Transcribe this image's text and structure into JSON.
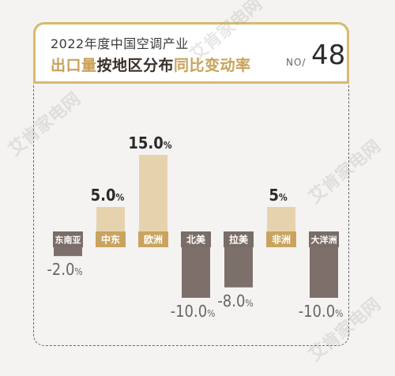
{
  "header": {
    "line1": "2022年度中国空调产业",
    "line2_gold_a": "出口量",
    "line2_dark": "按地区分布",
    "line2_gold_b": "同比变动率",
    "no_label": "NO/",
    "no_value": "48"
  },
  "watermark": "艾肯家电网",
  "colors": {
    "positive": "#e6d3ad",
    "negative": "#7d706b",
    "label_bg_positive": "#c9a460",
    "label_bg_negative": "#7a6d68",
    "accent": "#d9b96b"
  },
  "chart_data": {
    "type": "bar",
    "title": "2022年度中国空调产业出口量按地区分布同比变动率",
    "categories": [
      "东南亚",
      "中东",
      "欧洲",
      "北美",
      "拉美",
      "非洲",
      "大洋洲"
    ],
    "values": [
      -2.0,
      5.0,
      15.0,
      -10.0,
      -8.0,
      5.0,
      -10.0
    ],
    "value_labels": [
      "-2.0",
      "5.0",
      "15.0",
      "-10.0",
      "-8.0",
      "5",
      "-10.0"
    ],
    "unit": "%",
    "ylim": [
      -10,
      15
    ],
    "grid": false,
    "legend": "none"
  }
}
